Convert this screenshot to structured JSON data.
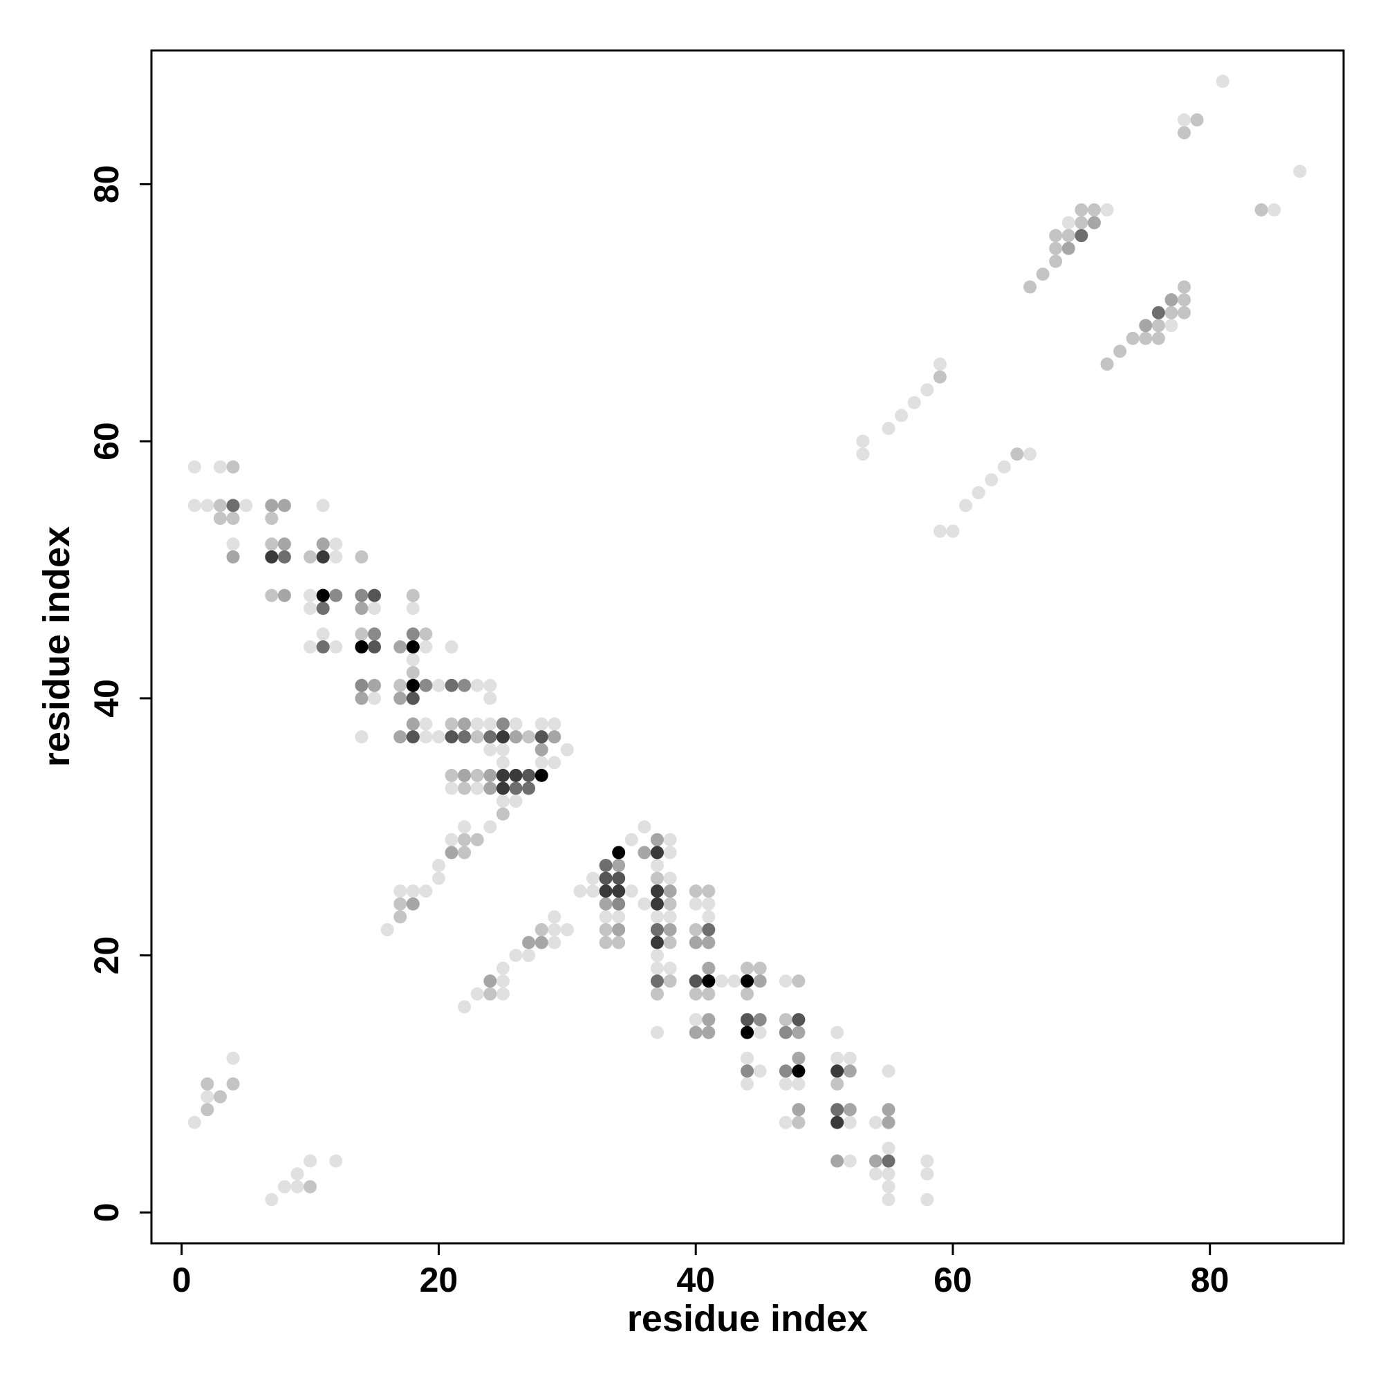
{
  "chart_data": {
    "type": "scatter",
    "x_label": "residue index",
    "y_label": "residue index",
    "xlim": [
      -2.35,
      90.4
    ],
    "ylim": [
      -2.4,
      90.4
    ],
    "xticks": [
      0,
      20,
      40,
      60,
      80
    ],
    "yticks": [
      0,
      20,
      40,
      60,
      80
    ],
    "grid": false,
    "series": [
      {
        "color": "#e0e0e0",
        "x": [
          81,
          78,
          85,
          72,
          87,
          69,
          77,
          59,
          58,
          57,
          56,
          55,
          53,
          53,
          66,
          64,
          1,
          3,
          63,
          62,
          61,
          1,
          2,
          5,
          11,
          59,
          60,
          4,
          12,
          12,
          10,
          10,
          15,
          18,
          11,
          10,
          12,
          19,
          21,
          18,
          20,
          23,
          24,
          15,
          24,
          19,
          23,
          24,
          26,
          28,
          29,
          14,
          19,
          20,
          24,
          25,
          30,
          25,
          28,
          29,
          21,
          23,
          25,
          26,
          22,
          24,
          36,
          21,
          35,
          38,
          38,
          20,
          37,
          20,
          32,
          38,
          17,
          18,
          19,
          31,
          32,
          35,
          36,
          40,
          41,
          29,
          33,
          34,
          37,
          38,
          41,
          16,
          29,
          30,
          29,
          26,
          27,
          37,
          25,
          37,
          38,
          25,
          42,
          43,
          47,
          23,
          25,
          22,
          40,
          37,
          45,
          51,
          4,
          44,
          51,
          52,
          45,
          55,
          2,
          44,
          47,
          48,
          1,
          47,
          52,
          54,
          55,
          10,
          12,
          52,
          58,
          9,
          54,
          55,
          58,
          8,
          9,
          55,
          7,
          55,
          58
        ],
        "y": [
          88,
          85,
          78,
          78,
          81,
          77,
          69,
          66,
          64,
          63,
          62,
          61,
          60,
          59,
          59,
          58,
          58,
          58,
          57,
          56,
          55,
          55,
          55,
          55,
          55,
          53,
          53,
          52,
          52,
          51,
          48,
          47,
          47,
          47,
          45,
          44,
          44,
          44,
          44,
          43,
          41,
          41,
          41,
          40,
          40,
          38,
          38,
          38,
          38,
          38,
          38,
          37,
          37,
          37,
          36,
          36,
          36,
          35,
          35,
          35,
          33,
          33,
          32,
          32,
          30,
          30,
          30,
          29,
          29,
          29,
          28,
          27,
          27,
          26,
          26,
          26,
          25,
          25,
          25,
          25,
          25,
          25,
          24,
          24,
          24,
          23,
          23,
          23,
          23,
          23,
          23,
          22,
          22,
          22,
          21,
          20,
          20,
          20,
          19,
          19,
          19,
          18,
          18,
          18,
          18,
          17,
          17,
          16,
          15,
          14,
          14,
          14,
          12,
          12,
          12,
          12,
          11,
          11,
          9,
          10,
          10,
          10,
          7,
          7,
          7,
          7,
          5,
          4,
          4,
          4,
          4,
          3,
          3,
          3,
          3,
          2,
          2,
          2,
          1,
          1,
          1
        ]
      },
      {
        "color": "#c4c4c4",
        "x": [
          79,
          78,
          84,
          70,
          71,
          70,
          68,
          69,
          68,
          68,
          67,
          66,
          78,
          78,
          77,
          78,
          76,
          74,
          75,
          76,
          73,
          72,
          59,
          65,
          4,
          3,
          3,
          4,
          7,
          7,
          10,
          14,
          7,
          18,
          14,
          19,
          17,
          18,
          21,
          23,
          27,
          21,
          23,
          22,
          25,
          22,
          23,
          22,
          37,
          38,
          17,
          17,
          28,
          40,
          33,
          33,
          34,
          38,
          44,
          45,
          38,
          48,
          24,
          37,
          40,
          41,
          44,
          47,
          2,
          4,
          51,
          3,
          2,
          48,
          10,
          40,
          41
        ],
        "y": [
          85,
          84,
          78,
          78,
          78,
          77,
          76,
          76,
          75,
          74,
          73,
          72,
          72,
          71,
          70,
          70,
          69,
          68,
          68,
          68,
          67,
          66,
          65,
          59,
          58,
          55,
          54,
          54,
          54,
          52,
          51,
          51,
          48,
          48,
          45,
          45,
          41,
          42,
          38,
          37,
          37,
          34,
          34,
          33,
          31,
          29,
          29,
          28,
          26,
          24,
          24,
          23,
          22,
          22,
          22,
          21,
          21,
          21,
          19,
          19,
          18,
          18,
          17,
          17,
          17,
          17,
          17,
          15,
          10,
          10,
          10,
          9,
          8,
          7,
          2,
          25,
          25
        ]
      },
      {
        "color": "#a6a6a6",
        "x": [
          71,
          69,
          77,
          75,
          4,
          7,
          8,
          8,
          11,
          8,
          14,
          17,
          15,
          14,
          17,
          18,
          22,
          17,
          26,
          29,
          28,
          22,
          24,
          24,
          37,
          21,
          36,
          34,
          18,
          33,
          34,
          38,
          27,
          28,
          40,
          41,
          38,
          24,
          41,
          45,
          41,
          40,
          41,
          48,
          48,
          52,
          48,
          52,
          55,
          55,
          51,
          54
        ],
        "y": [
          77,
          75,
          71,
          69,
          51,
          55,
          55,
          52,
          52,
          48,
          47,
          44,
          41,
          40,
          40,
          38,
          38,
          37,
          37,
          37,
          36,
          34,
          34,
          33,
          29,
          28,
          28,
          27,
          24,
          24,
          22,
          22,
          21,
          21,
          21,
          21,
          25,
          18,
          19,
          18,
          15,
          14,
          14,
          14,
          12,
          11,
          8,
          8,
          8,
          7,
          4,
          4
        ]
      },
      {
        "color": "#8a8a8a",
        "x": [
          12,
          14,
          15,
          18,
          14,
          19,
          22,
          25,
          45,
          47,
          44,
          47,
          34
        ],
        "y": [
          48,
          48,
          45,
          45,
          41,
          41,
          41,
          38,
          15,
          14,
          11,
          11,
          24
        ]
      },
      {
        "color": "#6e6e6e",
        "x": [
          76,
          70,
          4,
          8,
          11,
          11,
          21,
          22,
          24,
          26,
          27,
          33,
          37,
          37,
          51,
          55,
          41
        ],
        "y": [
          70,
          76,
          55,
          51,
          47,
          44,
          41,
          37,
          37,
          33,
          33,
          27,
          22,
          18,
          8,
          4,
          22
        ]
      },
      {
        "color": "#555555",
        "x": [
          15,
          15,
          18,
          18,
          21,
          28,
          27,
          33,
          34,
          40,
          44,
          48
        ],
        "y": [
          48,
          44,
          40,
          37,
          37,
          37,
          34,
          26,
          26,
          18,
          15,
          15
        ]
      },
      {
        "color": "#3a3a3a",
        "x": [
          7,
          11,
          25,
          25,
          26,
          25,
          37,
          33,
          34,
          37,
          37,
          37,
          51,
          51
        ],
        "y": [
          51,
          51,
          37,
          34,
          34,
          33,
          28,
          25,
          25,
          25,
          24,
          21,
          11,
          7
        ]
      },
      {
        "color": "#000000",
        "x": [
          11,
          14,
          18,
          18,
          28,
          34,
          41,
          44,
          44,
          48
        ],
        "y": [
          48,
          44,
          44,
          41,
          34,
          28,
          18,
          18,
          14,
          11
        ]
      }
    ]
  }
}
